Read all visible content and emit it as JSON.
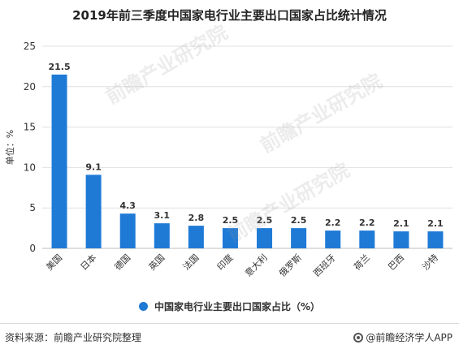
{
  "title": "2019年前三季度中国家电行业主要出口国家占比统计情况",
  "legend": "中国家电行业主要出口国家占比（%）",
  "source": "资料来源：前瞻产业研究院整理",
  "brand": "@前瞻经济学人APP",
  "watermarks": [
    "前瞻产业研究院",
    "前瞻产业研究院",
    "前瞻产业研究院"
  ],
  "colors": {
    "bar": "#1f7ad6",
    "grid": "#e0e0e0",
    "axis": "#bfbfbf"
  },
  "chart_data": {
    "type": "bar",
    "categories": [
      "美国",
      "日本",
      "德国",
      "英国",
      "法国",
      "印度",
      "意大利",
      "俄罗斯",
      "西班牙",
      "荷兰",
      "巴西",
      "沙特"
    ],
    "series": [
      {
        "name": "中国家电行业主要出口国家占比（%）",
        "values": [
          21.5,
          9.1,
          4.3,
          3.1,
          2.8,
          2.5,
          2.5,
          2.5,
          2.2,
          2.2,
          2.1,
          2.1
        ]
      }
    ],
    "data_labels": [
      "21.5",
      "9.1",
      "4.3",
      "3.1",
      "2.8",
      "2.5",
      "2.5",
      "2.5",
      "2.2",
      "2.2",
      "2.1",
      "2.1"
    ],
    "ylabel": "单位：%",
    "ylim": [
      0,
      25
    ],
    "yticks": [
      "0",
      "5",
      "10",
      "15",
      "20",
      "25"
    ],
    "grid": true,
    "legend_position": "bottom"
  }
}
